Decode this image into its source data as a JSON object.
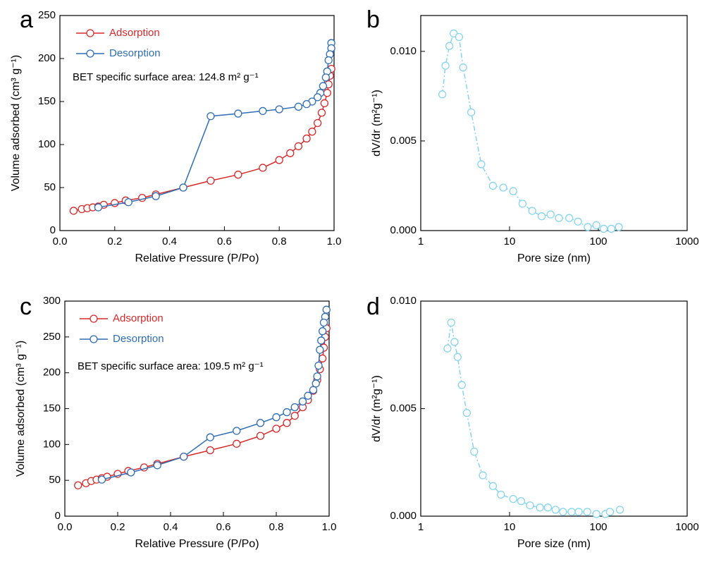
{
  "chart_data": [
    {
      "type": "line",
      "label": "a",
      "xlabel": "Relative Pressure (P/Po)",
      "ylabel": "Volume adsorbed (cm³ g⁻¹)",
      "annotation": "BET specific surface area: 124.8 m² g⁻¹",
      "legend": "upper left",
      "xlim": [
        0,
        1
      ],
      "xticks": [
        {
          "value": 0,
          "label": "0.0"
        },
        0.2,
        0.4,
        0.6,
        0.8,
        {
          "value": 1,
          "label": "1.0"
        }
      ],
      "ylim": [
        0,
        250
      ],
      "yticks": [
        0,
        50,
        100,
        150,
        200,
        250
      ],
      "series": [
        {
          "name": "Adsorption",
          "color": "#d8282a",
          "linestyle": "solid",
          "x": [
            0.05,
            0.08,
            0.1,
            0.12,
            0.14,
            0.16,
            0.2,
            0.24,
            0.3,
            0.35,
            0.45,
            0.55,
            0.65,
            0.74,
            0.8,
            0.84,
            0.87,
            0.9,
            0.92,
            0.94,
            0.955,
            0.965,
            0.975,
            0.98,
            0.985,
            0.99
          ],
          "values": [
            23,
            25,
            26,
            27,
            28,
            30,
            32,
            35,
            38,
            42,
            50,
            58,
            65,
            73,
            82,
            90,
            98,
            107,
            115,
            125,
            137,
            148,
            160,
            170,
            180,
            188
          ]
        },
        {
          "name": "Desorption",
          "color": "#2f6db5",
          "linestyle": "solid",
          "x": [
            0.99,
            0.99,
            0.985,
            0.98,
            0.975,
            0.97,
            0.96,
            0.95,
            0.94,
            0.92,
            0.9,
            0.87,
            0.8,
            0.74,
            0.65,
            0.55,
            0.45,
            0.35,
            0.25,
            0.14
          ],
          "values": [
            218,
            212,
            205,
            198,
            185,
            178,
            168,
            160,
            155,
            150,
            147,
            144,
            141,
            139,
            136,
            133,
            50,
            40,
            33,
            27
          ]
        }
      ]
    },
    {
      "type": "line",
      "label": "b",
      "xlabel": "Pore size (nm)",
      "ylabel": "dV/dr (m²g⁻¹)",
      "xscale": "log",
      "xlim": [
        1,
        1000
      ],
      "xticks": [
        1,
        10,
        100,
        1000
      ],
      "ylim": [
        0,
        0.012
      ],
      "yticks": [
        {
          "value": 0,
          "label": "0.000"
        },
        0.005,
        {
          "value": 0.01,
          "label": "0.010"
        }
      ],
      "series": [
        {
          "color": "#86d4f0",
          "linestyle": "dashdot",
          "x": [
            1.75,
            1.9,
            2.1,
            2.35,
            2.7,
            3.0,
            3.7,
            4.8,
            6.5,
            8.5,
            11,
            14,
            18,
            23,
            29,
            36,
            47,
            59,
            76,
            95,
            115,
            140,
            170
          ],
          "values": [
            0.0076,
            0.0092,
            0.0103,
            0.011,
            0.0108,
            0.0091,
            0.0066,
            0.0037,
            0.0025,
            0.0024,
            0.0022,
            0.0015,
            0.0011,
            0.0008,
            0.0009,
            0.0007,
            0.0007,
            0.0005,
            0.0002,
            0.0003,
            0.0001,
            0.0001,
            0.0002
          ]
        }
      ]
    },
    {
      "type": "line",
      "label": "c",
      "xlabel": "Relative Pressure (P/Po)",
      "ylabel": "Volume adsorbed (cm³ g⁻¹)",
      "annotation": "BET specific surface area: 109.5 m² g⁻¹",
      "legend": "upper left",
      "xlim": [
        0,
        1
      ],
      "xticks": [
        {
          "value": 0,
          "label": "0.0"
        },
        0.2,
        0.4,
        0.6,
        0.8,
        {
          "value": 1,
          "label": "1.0"
        }
      ],
      "ylim": [
        0,
        300
      ],
      "yticks": [
        0,
        50,
        100,
        150,
        200,
        250,
        300
      ],
      "series": [
        {
          "name": "Adsorption",
          "color": "#d8282a",
          "linestyle": "solid",
          "x": [
            0.05,
            0.08,
            0.1,
            0.12,
            0.14,
            0.16,
            0.2,
            0.24,
            0.3,
            0.35,
            0.45,
            0.55,
            0.65,
            0.74,
            0.8,
            0.84,
            0.87,
            0.9,
            0.92,
            0.94,
            0.955,
            0.965,
            0.975,
            0.98,
            0.985,
            0.99
          ],
          "values": [
            43,
            46,
            49,
            51,
            53,
            55,
            59,
            63,
            68,
            73,
            83,
            92,
            101,
            112,
            122,
            130,
            140,
            152,
            162,
            175,
            190,
            205,
            220,
            235,
            250,
            262
          ]
        },
        {
          "name": "Desorption",
          "color": "#2f6db5",
          "linestyle": "solid",
          "x": [
            0.99,
            0.985,
            0.98,
            0.975,
            0.97,
            0.965,
            0.96,
            0.955,
            0.95,
            0.94,
            0.92,
            0.9,
            0.87,
            0.84,
            0.8,
            0.74,
            0.65,
            0.55,
            0.45,
            0.35,
            0.25,
            0.14
          ],
          "values": [
            288,
            278,
            270,
            258,
            245,
            232,
            210,
            195,
            185,
            176,
            168,
            160,
            152,
            145,
            138,
            130,
            119,
            110,
            83,
            71,
            61,
            51
          ]
        }
      ]
    },
    {
      "type": "line",
      "label": "d",
      "xlabel": "Pore size (nm)",
      "ylabel": "dV/dr (m²g⁻¹)",
      "xscale": "log",
      "xlim": [
        1,
        1000
      ],
      "xticks": [
        1,
        10,
        100,
        1000
      ],
      "ylim": [
        0,
        0.01
      ],
      "yticks": [
        {
          "value": 0,
          "label": "0.000"
        },
        0.005,
        {
          "value": 0.01,
          "label": "0.010"
        }
      ],
      "series": [
        {
          "color": "#86d4f0",
          "linestyle": "dashdot",
          "x": [
            2.0,
            2.2,
            2.4,
            2.6,
            2.9,
            3.3,
            4,
            5,
            6.5,
            8,
            11,
            13.5,
            17,
            22,
            27,
            33,
            40,
            50,
            60,
            75,
            95,
            120,
            135,
            175
          ],
          "values": [
            0.0078,
            0.009,
            0.0081,
            0.0074,
            0.0061,
            0.0048,
            0.003,
            0.0019,
            0.0014,
            0.001,
            0.0008,
            0.0007,
            0.0005,
            0.0004,
            0.0004,
            0.0003,
            0.0002,
            0.0002,
            0.0002,
            0.0002,
            0.0001,
            0.0001,
            0.0002,
            0.0003
          ]
        }
      ]
    }
  ]
}
